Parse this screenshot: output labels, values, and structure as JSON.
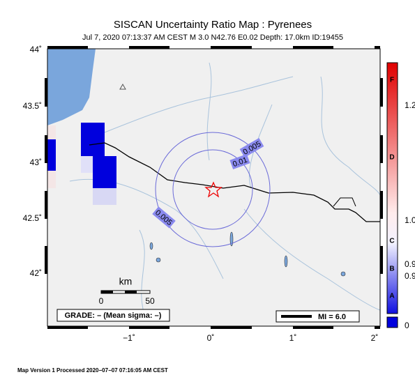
{
  "header": {
    "title": "SISCAN Uncertainty Ratio Map : Pyrenees",
    "subtitle": "Jul  7, 2020 07:13:37 AM CEST   M 3.0   N42.76 E0.02   Depth: 17.0km   ID:19455"
  },
  "map": {
    "lat_labels": [
      "44˚",
      "43.5˚",
      "43˚",
      "42.5˚",
      "42˚"
    ],
    "lon_labels": [
      "−1˚",
      "0˚",
      "1˚",
      "2˚"
    ],
    "contour_labels": [
      "0.005",
      "0.01",
      "0.005"
    ],
    "scale": {
      "unit": "km",
      "start": "0",
      "end": "50"
    },
    "grade": "GRADE: – (Mean sigma: –)",
    "mi": "MI = 6.0"
  },
  "colorbar": {
    "letters": [
      "F",
      "D",
      "C",
      "B",
      "A"
    ],
    "values": [
      "1.2",
      "1.0",
      "0.9",
      "0.9",
      "0"
    ]
  },
  "footer": "Map Version 1 Processed 2020−07−07 07:16:05 AM CEST"
}
